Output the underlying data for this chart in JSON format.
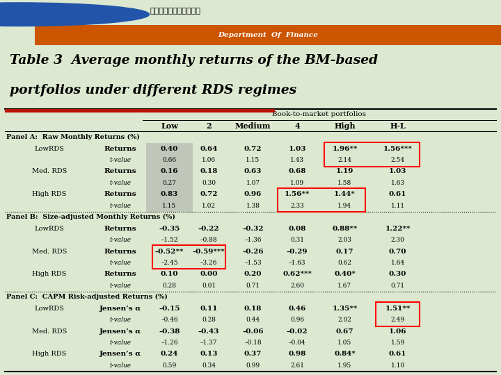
{
  "title_line1": "Table 3  Average monthly returns of the BM-based",
  "title_line2": "portfolios under different RDS regimes",
  "header_main": "Book-to-market portfolios",
  "col_headers": [
    "Low",
    "2",
    "Medium",
    "4",
    "High",
    "H-L"
  ],
  "panel_a_title": "Panel A:  Raw Monthly Returns (%)",
  "panel_b_title": "Panel B:  Size-adjusted Monthly Returns (%)",
  "panel_c_title": "Panel C:  CAPM Risk-adjusted Returns (%)",
  "rows": [
    {
      "regime": "LowRDS",
      "label": "Returns",
      "vals": [
        "0.40",
        "0.64",
        "0.72",
        "1.03",
        "1.96**",
        "1.56***"
      ],
      "bold": true,
      "panel": "A"
    },
    {
      "regime": "LowRDS",
      "label": "t-value",
      "vals": [
        "0.66",
        "1.06",
        "1.15",
        "1.43",
        "2.14",
        "2.54"
      ],
      "bold": false,
      "panel": "A"
    },
    {
      "regime": "Med. RDS",
      "label": "Returns",
      "vals": [
        "0.16",
        "0.18",
        "0.63",
        "0.68",
        "1.19",
        "1.03"
      ],
      "bold": true,
      "panel": "A"
    },
    {
      "regime": "Med. RDS",
      "label": "t-value",
      "vals": [
        "0.27",
        "0.30",
        "1.07",
        "1.09",
        "1.58",
        "1.63"
      ],
      "bold": false,
      "panel": "A"
    },
    {
      "regime": "High RDS",
      "label": "Returns",
      "vals": [
        "0.83",
        "0.72",
        "0.96",
        "1.56**",
        "1.44*",
        "0.61"
      ],
      "bold": true,
      "panel": "A"
    },
    {
      "regime": "High RDS",
      "label": "t-value",
      "vals": [
        "1.15",
        "1.02",
        "1.38",
        "2.33",
        "1.94",
        "1.11"
      ],
      "bold": false,
      "panel": "A"
    },
    {
      "regime": "LowRDS",
      "label": "Returns",
      "vals": [
        "–0.35",
        "–0.22",
        "–0.32",
        "0.08",
        "0.88**",
        "1.22**"
      ],
      "bold": true,
      "panel": "B"
    },
    {
      "regime": "LowRDS",
      "label": "t-value",
      "vals": [
        "–1.52",
        "–0.88",
        "–1.36",
        "0.31",
        "2.03",
        "2.30"
      ],
      "bold": false,
      "panel": "B"
    },
    {
      "regime": "Med. RDS",
      "label": "Returns",
      "vals": [
        "–0.52**",
        "–0.59***",
        "–0.26",
        "–0.29",
        "0.17",
        "0.70"
      ],
      "bold": true,
      "panel": "B"
    },
    {
      "regime": "Med. RDS",
      "label": "t-value",
      "vals": [
        "–2.45",
        "–3.26",
        "–1.53",
        "–1.63",
        "0.62",
        "1.64"
      ],
      "bold": false,
      "panel": "B"
    },
    {
      "regime": "High RDS",
      "label": "Returns",
      "vals": [
        "0.10",
        "0.00",
        "0.20",
        "0.62***",
        "0.40*",
        "0.30"
      ],
      "bold": true,
      "panel": "B"
    },
    {
      "regime": "High RDS",
      "label": "t-value",
      "vals": [
        "0.28",
        "0.01",
        "0.71",
        "2.60",
        "1.67",
        "0.71"
      ],
      "bold": false,
      "panel": "B"
    },
    {
      "regime": "LowRDS",
      "label": "Jensen’s α",
      "vals": [
        "–0.15",
        "0.11",
        "0.18",
        "0.46",
        "1.35**",
        "1.51**"
      ],
      "bold": true,
      "panel": "C"
    },
    {
      "regime": "LowRDS",
      "label": "t-value",
      "vals": [
        "–0.46",
        "0.28",
        "0.44",
        "0.96",
        "2.02",
        "2.49"
      ],
      "bold": false,
      "panel": "C"
    },
    {
      "regime": "Med. RDS",
      "label": "Jensen’s α",
      "vals": [
        "–0.38",
        "–0.43",
        "–0.06",
        "–0.02",
        "0.67",
        "1.06"
      ],
      "bold": true,
      "panel": "C"
    },
    {
      "regime": "Med. RDS",
      "label": "t-value",
      "vals": [
        "–1.26",
        "–1.37",
        "–0.18",
        "–0.04",
        "1.05",
        "1.59"
      ],
      "bold": false,
      "panel": "C"
    },
    {
      "regime": "High RDS",
      "label": "Jensen’s α",
      "vals": [
        "0.24",
        "0.13",
        "0.37",
        "0.98",
        "0.84*",
        "0.61"
      ],
      "bold": true,
      "panel": "C"
    },
    {
      "regime": "High RDS",
      "label": "t-value",
      "vals": [
        "0.59",
        "0.34",
        "0.99",
        "2.61",
        "1.95",
        "1.10"
      ],
      "bold": false,
      "panel": "C"
    }
  ],
  "bg_color": "#dde8d0",
  "logo_text": "南亞技術學院財務金融系"
}
